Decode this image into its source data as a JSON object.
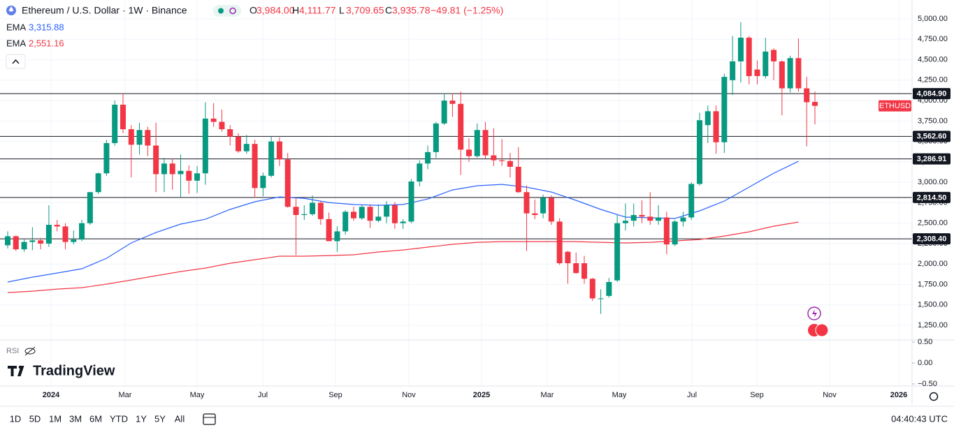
{
  "header": {
    "title": "Ethereum / U.S. Dollar · 1W · Binance",
    "ohlc": [
      {
        "key": "O",
        "value": "3,984.00"
      },
      {
        "key": "H",
        "value": "4,111.77"
      },
      {
        "key": "L",
        "value": "3,709.65"
      },
      {
        "key": "C",
        "value": "3,935.78"
      }
    ],
    "change": "−49.81 (−1.25%)"
  },
  "indicators": [
    {
      "name": "EMA",
      "value": "3,315.88",
      "color": "#2962ff"
    },
    {
      "name": "EMA",
      "value": "2,551.16",
      "color": "#f23645"
    }
  ],
  "chart_data": {
    "type": "candlestick",
    "symbol_tag": "ETHUSD",
    "up_color": "#089981",
    "down_color": "#f23645",
    "grid": true,
    "open": [
      2230,
      2340,
      2180,
      2270,
      2290,
      2250,
      2480,
      2460,
      2270,
      2300,
      2500,
      2880,
      3110,
      3480,
      3950,
      3650,
      3460,
      3640,
      3450,
      3100,
      3230,
      3100,
      3140,
      3020,
      3110,
      3780,
      3740,
      3650,
      3560,
      3380,
      3470,
      2930,
      3080,
      3500,
      3280,
      2700,
      2600,
      2610,
      2750,
      2550,
      2280,
      2400,
      2640,
      2560,
      2700,
      2530,
      2580,
      2720,
      2500,
      2520,
      3010,
      3230,
      3370,
      3720,
      4000,
      3960,
      3400,
      3320,
      3640,
      3330,
      3270,
      3260,
      3190,
      2880,
      2620,
      2620,
      2810,
      2520,
      2150,
      2010,
      2010,
      1820,
      1580,
      1610,
      1800,
      2500,
      2530,
      2600,
      2580,
      2530,
      2570,
      2240,
      2520,
      2570,
      2980,
      3700,
      3870,
      3490,
      4250,
      4480,
      4770,
      4380,
      4300,
      4620,
      4480,
      4150,
      4520,
      4150,
      3984
    ],
    "high": [
      2400,
      2350,
      2300,
      2450,
      2320,
      2720,
      2540,
      2500,
      2410,
      2540,
      2880,
      3120,
      3520,
      4000,
      4090,
      3700,
      3730,
      3680,
      3730,
      3300,
      3290,
      3340,
      3210,
      3200,
      3980,
      3970,
      3890,
      3700,
      3600,
      3580,
      3520,
      3120,
      3560,
      3550,
      3360,
      2810,
      2720,
      2840,
      2770,
      2630,
      2460,
      2660,
      2700,
      2720,
      2730,
      2730,
      2770,
      2760,
      2550,
      3040,
      3270,
      3450,
      3740,
      4090,
      4090,
      4110,
      3540,
      3720,
      3740,
      3660,
      3530,
      3360,
      3430,
      2960,
      2790,
      2850,
      2840,
      2560,
      2160,
      2140,
      2100,
      1830,
      1690,
      1830,
      2600,
      2740,
      2740,
      2780,
      2880,
      2720,
      2640,
      2540,
      2640,
      3000,
      3850,
      3940,
      3940,
      4330,
      4790,
      4960,
      4790,
      4490,
      4770,
      4640,
      4490,
      4550,
      4760,
      4290,
      4111.77
    ],
    "low": [
      2190,
      2160,
      2150,
      2170,
      2180,
      2210,
      2400,
      2180,
      2240,
      2280,
      2480,
      2860,
      3080,
      3450,
      3600,
      3060,
      3340,
      3320,
      2880,
      2880,
      2910,
      2820,
      2860,
      2870,
      2970,
      3680,
      3620,
      3450,
      3360,
      3350,
      2810,
      2830,
      3060,
      3200,
      2690,
      2110,
      2540,
      2590,
      2480,
      2280,
      2150,
      2360,
      2530,
      2540,
      2440,
      2510,
      2500,
      2430,
      2430,
      2500,
      2950,
      3160,
      3300,
      3700,
      3800,
      3090,
      3250,
      3300,
      3290,
      3200,
      3200,
      3060,
      2870,
      2160,
      2550,
      2560,
      2480,
      1990,
      1760,
      1880,
      1760,
      1550,
      1390,
      1590,
      1780,
      2410,
      2460,
      2500,
      2480,
      2480,
      2120,
      2220,
      2460,
      2540,
      2960,
      3480,
      3350,
      3360,
      4070,
      4220,
      4200,
      4200,
      4270,
      4250,
      3820,
      4100,
      4110,
      3440,
      3709.65
    ],
    "close": [
      2340,
      2180,
      2270,
      2290,
      2250,
      2480,
      2460,
      2270,
      2300,
      2500,
      2880,
      3110,
      3480,
      3950,
      3650,
      3460,
      3640,
      3450,
      3100,
      3230,
      3100,
      3140,
      3020,
      3110,
      3780,
      3740,
      3650,
      3560,
      3380,
      3470,
      2930,
      3080,
      3500,
      3280,
      2700,
      2600,
      2610,
      2750,
      2550,
      2280,
      2400,
      2640,
      2560,
      2700,
      2530,
      2580,
      2720,
      2500,
      2520,
      3010,
      3230,
      3370,
      3720,
      4000,
      3960,
      3400,
      3320,
      3640,
      3330,
      3270,
      3260,
      3190,
      2880,
      2620,
      2600,
      2810,
      2520,
      2010,
      2010,
      1890,
      1820,
      1580,
      1580,
      1780,
      2500,
      2530,
      2600,
      2580,
      2530,
      2570,
      2240,
      2520,
      2570,
      2980,
      3760,
      3870,
      3490,
      4290,
      4480,
      4770,
      4300,
      4300,
      4600,
      4480,
      4150,
      4520,
      4150,
      3980,
      3935.78
    ],
    "ema": [
      {
        "color": "#2962ff",
        "values": [
          1780,
          1840,
          1890,
          1942,
          2070,
          2258,
          2386,
          2489,
          2548,
          2668,
          2762,
          2821,
          2804,
          2753,
          2728,
          2719,
          2728,
          2796,
          2907,
          2958,
          2975,
          2941,
          2881,
          2779,
          2668,
          2574,
          2566,
          2557,
          2651,
          2771,
          2941,
          3112,
          3257
        ]
      },
      {
        "color": "#f23645",
        "values": [
          1651,
          1668,
          1694,
          1711,
          1754,
          1805,
          1857,
          1908,
          1951,
          2010,
          2053,
          2096,
          2096,
          2104,
          2113,
          2147,
          2172,
          2207,
          2241,
          2266,
          2275,
          2275,
          2275,
          2275,
          2266,
          2258,
          2266,
          2283,
          2300,
          2343,
          2394,
          2463,
          2514
        ]
      }
    ],
    "levels": [
      {
        "value": 4084.9,
        "label": "4,084.90"
      },
      {
        "value": 3562.6,
        "label": "3,562.60"
      },
      {
        "value": 3286.91,
        "label": "3,286.91"
      },
      {
        "value": 2814.5,
        "label": "2,814.50"
      },
      {
        "value": 2308.4,
        "label": "2,308.40"
      }
    ],
    "ylim": [
      1071,
      5231
    ],
    "yticks": [
      {
        "value": 5000,
        "label": "5,000.00"
      },
      {
        "value": 4750,
        "label": "4,750.00"
      },
      {
        "value": 4500,
        "label": "4,500.00"
      },
      {
        "value": 4250,
        "label": "4,250.00"
      },
      {
        "value": 4000,
        "label": "4,000.00"
      },
      {
        "value": 3750,
        "label": "3,750.00"
      },
      {
        "value": 3500,
        "label": "3,500.00"
      },
      {
        "value": 3250,
        "label": "3,250.00"
      },
      {
        "value": 3000,
        "label": "3,000.00"
      },
      {
        "value": 2750,
        "label": "2,750.00"
      },
      {
        "value": 2500,
        "label": "2,500.00"
      },
      {
        "value": 2250,
        "label": "2,250.00"
      },
      {
        "value": 2000,
        "label": "2,000.00"
      },
      {
        "value": 1750,
        "label": "1,750.00"
      },
      {
        "value": 1500,
        "label": "1,500.00"
      },
      {
        "value": 1250,
        "label": "1,250.00"
      }
    ],
    "x_labels": [
      "2024",
      "Mar",
      "May",
      "Jul",
      "Sep",
      "Nov",
      "2025",
      "Mar",
      "May",
      "Jul",
      "Sep",
      "Nov",
      "2026"
    ],
    "rsi": {
      "label": "RSI",
      "ylim": [
        -0.55,
        0.55
      ],
      "yticks": [
        {
          "value": 0.5,
          "label": "0.50"
        },
        {
          "value": 0,
          "label": "0.00"
        },
        {
          "value": -0.5,
          "label": "−0.50"
        }
      ]
    }
  },
  "logo": "TradingView",
  "toolbar": {
    "ranges": [
      "1D",
      "5D",
      "1M",
      "3M",
      "6M",
      "YTD",
      "1Y",
      "5Y",
      "All"
    ],
    "time": "04:40:43 UTC"
  }
}
